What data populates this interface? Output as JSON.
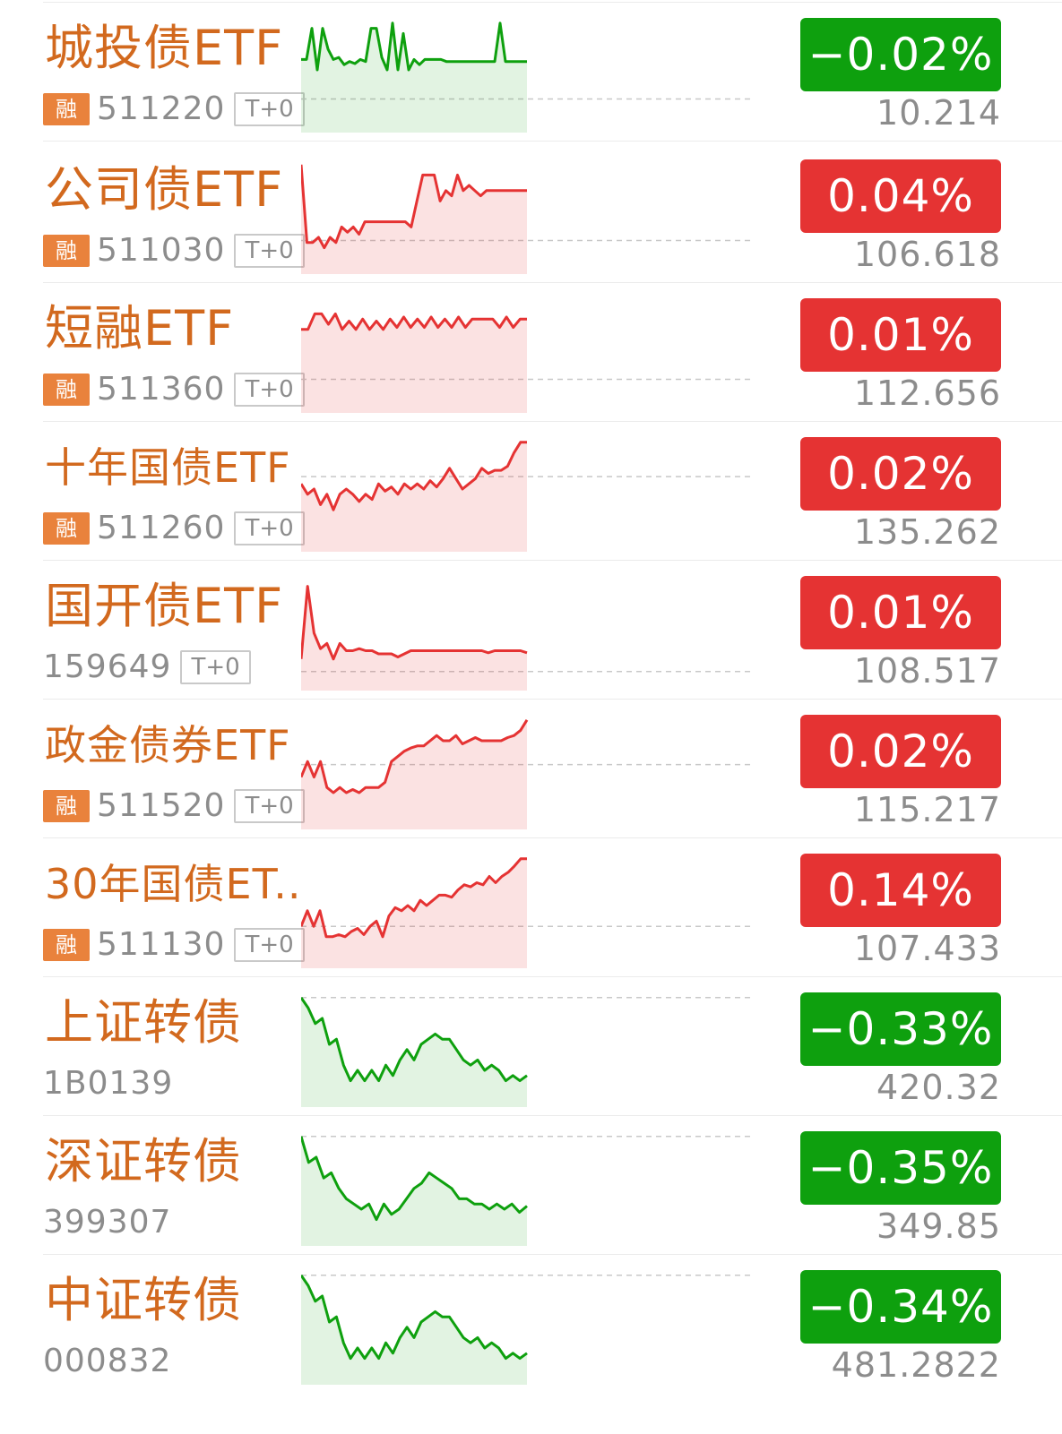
{
  "colors": {
    "name": "#d2691e",
    "up": "#e53333",
    "down": "#0ea00e",
    "rong_badge": "#e9823c",
    "muted": "#8c8c8c"
  },
  "items": [
    {
      "name": "城投债ETF",
      "code": "511220",
      "rong": "融",
      "t0": "T+0",
      "change": "−0.02%",
      "price": "10.214",
      "direction": "down",
      "ref": 0.22,
      "spark": [
        0.6,
        0.6,
        0.9,
        0.5,
        0.9,
        0.7,
        0.6,
        0.62,
        0.55,
        0.58,
        0.56,
        0.6,
        0.58,
        0.9,
        0.9,
        0.62,
        0.5,
        0.95,
        0.5,
        0.85,
        0.5,
        0.6,
        0.55,
        0.6,
        0.6,
        0.6,
        0.6,
        0.58,
        0.58,
        0.58,
        0.58,
        0.58,
        0.58,
        0.58,
        0.58,
        0.58,
        0.58,
        0.95,
        0.58,
        0.58,
        0.58,
        0.58,
        0.58
      ]
    },
    {
      "name": "公司债ETF",
      "code": "511030",
      "rong": "融",
      "t0": "T+0",
      "change": "0.04%",
      "price": "106.618",
      "direction": "up",
      "ref": 0.22,
      "spark": [
        0.95,
        0.2,
        0.2,
        0.25,
        0.15,
        0.25,
        0.2,
        0.35,
        0.3,
        0.35,
        0.28,
        0.4,
        0.4,
        0.4,
        0.4,
        0.4,
        0.4,
        0.4,
        0.4,
        0.35,
        0.6,
        0.85,
        0.85,
        0.85,
        0.6,
        0.7,
        0.65,
        0.85,
        0.7,
        0.75,
        0.7,
        0.65,
        0.7,
        0.7,
        0.7,
        0.7,
        0.7,
        0.7,
        0.7,
        0.7
      ]
    },
    {
      "name": "短融ETF",
      "code": "511360",
      "rong": "融",
      "t0": "T+0",
      "change": "0.01%",
      "price": "112.656",
      "direction": "up",
      "ref": 0.22,
      "spark": [
        0.7,
        0.7,
        0.85,
        0.85,
        0.75,
        0.85,
        0.7,
        0.78,
        0.7,
        0.8,
        0.7,
        0.78,
        0.7,
        0.8,
        0.72,
        0.82,
        0.72,
        0.8,
        0.72,
        0.82,
        0.72,
        0.8,
        0.72,
        0.82,
        0.72,
        0.8,
        0.8,
        0.8,
        0.8,
        0.72,
        0.82,
        0.72,
        0.8,
        0.8
      ]
    },
    {
      "name": "十年国债ETF",
      "code": "511260",
      "rong": "融",
      "t0": "T+0",
      "change": "0.02%",
      "price": "135.262",
      "direction": "up",
      "ref": 0.62,
      "spark": [
        0.55,
        0.45,
        0.5,
        0.35,
        0.45,
        0.3,
        0.45,
        0.5,
        0.45,
        0.38,
        0.45,
        0.4,
        0.55,
        0.48,
        0.52,
        0.45,
        0.55,
        0.5,
        0.55,
        0.5,
        0.58,
        0.52,
        0.6,
        0.7,
        0.6,
        0.5,
        0.55,
        0.6,
        0.7,
        0.65,
        0.68,
        0.68,
        0.72,
        0.85,
        0.95,
        0.95
      ]
    },
    {
      "name": "国开债ETF",
      "code": "159649",
      "rong": "",
      "t0": "T+0",
      "change": "0.01%",
      "price": "108.517",
      "direction": "up",
      "ref": 0.08,
      "spark": [
        0.2,
        0.9,
        0.45,
        0.3,
        0.35,
        0.2,
        0.35,
        0.28,
        0.28,
        0.3,
        0.28,
        0.28,
        0.25,
        0.25,
        0.25,
        0.22,
        0.25,
        0.28,
        0.28,
        0.28,
        0.28,
        0.28,
        0.28,
        0.28,
        0.28,
        0.28,
        0.28,
        0.28,
        0.28,
        0.26,
        0.28,
        0.28,
        0.28,
        0.28,
        0.28,
        0.26
      ]
    },
    {
      "name": "政金债券ETF",
      "code": "511520",
      "rong": "融",
      "t0": "T+0",
      "change": "0.02%",
      "price": "115.217",
      "direction": "up",
      "ref": 0.52,
      "spark": [
        0.4,
        0.55,
        0.4,
        0.55,
        0.3,
        0.25,
        0.3,
        0.25,
        0.28,
        0.25,
        0.3,
        0.3,
        0.3,
        0.35,
        0.55,
        0.6,
        0.65,
        0.68,
        0.7,
        0.7,
        0.75,
        0.8,
        0.75,
        0.75,
        0.8,
        0.72,
        0.75,
        0.78,
        0.75,
        0.75,
        0.75,
        0.75,
        0.78,
        0.8,
        0.85,
        0.95
      ]
    },
    {
      "name": "30年国债ET...",
      "code": "511130",
      "rong": "融",
      "t0": "T+0",
      "change": "0.14%",
      "price": "107.433",
      "direction": "up",
      "ref": 0.3,
      "spark": [
        0.3,
        0.45,
        0.3,
        0.45,
        0.2,
        0.2,
        0.22,
        0.2,
        0.25,
        0.28,
        0.22,
        0.3,
        0.35,
        0.2,
        0.4,
        0.48,
        0.45,
        0.5,
        0.45,
        0.55,
        0.5,
        0.55,
        0.6,
        0.6,
        0.58,
        0.65,
        0.7,
        0.68,
        0.72,
        0.7,
        0.78,
        0.72,
        0.78,
        0.82,
        0.88,
        0.95,
        0.95
      ]
    },
    {
      "name": "上证转债",
      "code": "1B0139",
      "rong": "",
      "t0": "",
      "change": "−0.33%",
      "price": "420.32",
      "direction": "down",
      "ref": 0.95,
      "spark": [
        0.95,
        0.85,
        0.7,
        0.75,
        0.5,
        0.55,
        0.3,
        0.15,
        0.25,
        0.15,
        0.25,
        0.15,
        0.3,
        0.2,
        0.35,
        0.45,
        0.35,
        0.5,
        0.55,
        0.6,
        0.55,
        0.55,
        0.45,
        0.35,
        0.3,
        0.35,
        0.25,
        0.3,
        0.25,
        0.15,
        0.2,
        0.15,
        0.2
      ]
    },
    {
      "name": "深证转债",
      "code": "399307",
      "rong": "",
      "t0": "",
      "change": "−0.35%",
      "price": "349.85",
      "direction": "down",
      "ref": 0.95,
      "spark": [
        0.95,
        0.7,
        0.75,
        0.55,
        0.6,
        0.45,
        0.35,
        0.3,
        0.25,
        0.3,
        0.15,
        0.3,
        0.2,
        0.25,
        0.35,
        0.45,
        0.5,
        0.6,
        0.55,
        0.5,
        0.45,
        0.35,
        0.35,
        0.3,
        0.3,
        0.25,
        0.3,
        0.25,
        0.3,
        0.22,
        0.28
      ]
    },
    {
      "name": "中证转债",
      "code": "000832",
      "rong": "",
      "t0": "",
      "change": "−0.34%",
      "price": "481.2822",
      "direction": "down",
      "ref": 0.95,
      "spark": [
        0.95,
        0.85,
        0.7,
        0.75,
        0.5,
        0.55,
        0.3,
        0.15,
        0.25,
        0.15,
        0.25,
        0.15,
        0.3,
        0.2,
        0.35,
        0.45,
        0.35,
        0.5,
        0.55,
        0.6,
        0.55,
        0.55,
        0.45,
        0.35,
        0.3,
        0.35,
        0.25,
        0.3,
        0.25,
        0.15,
        0.2,
        0.15,
        0.2
      ]
    }
  ]
}
